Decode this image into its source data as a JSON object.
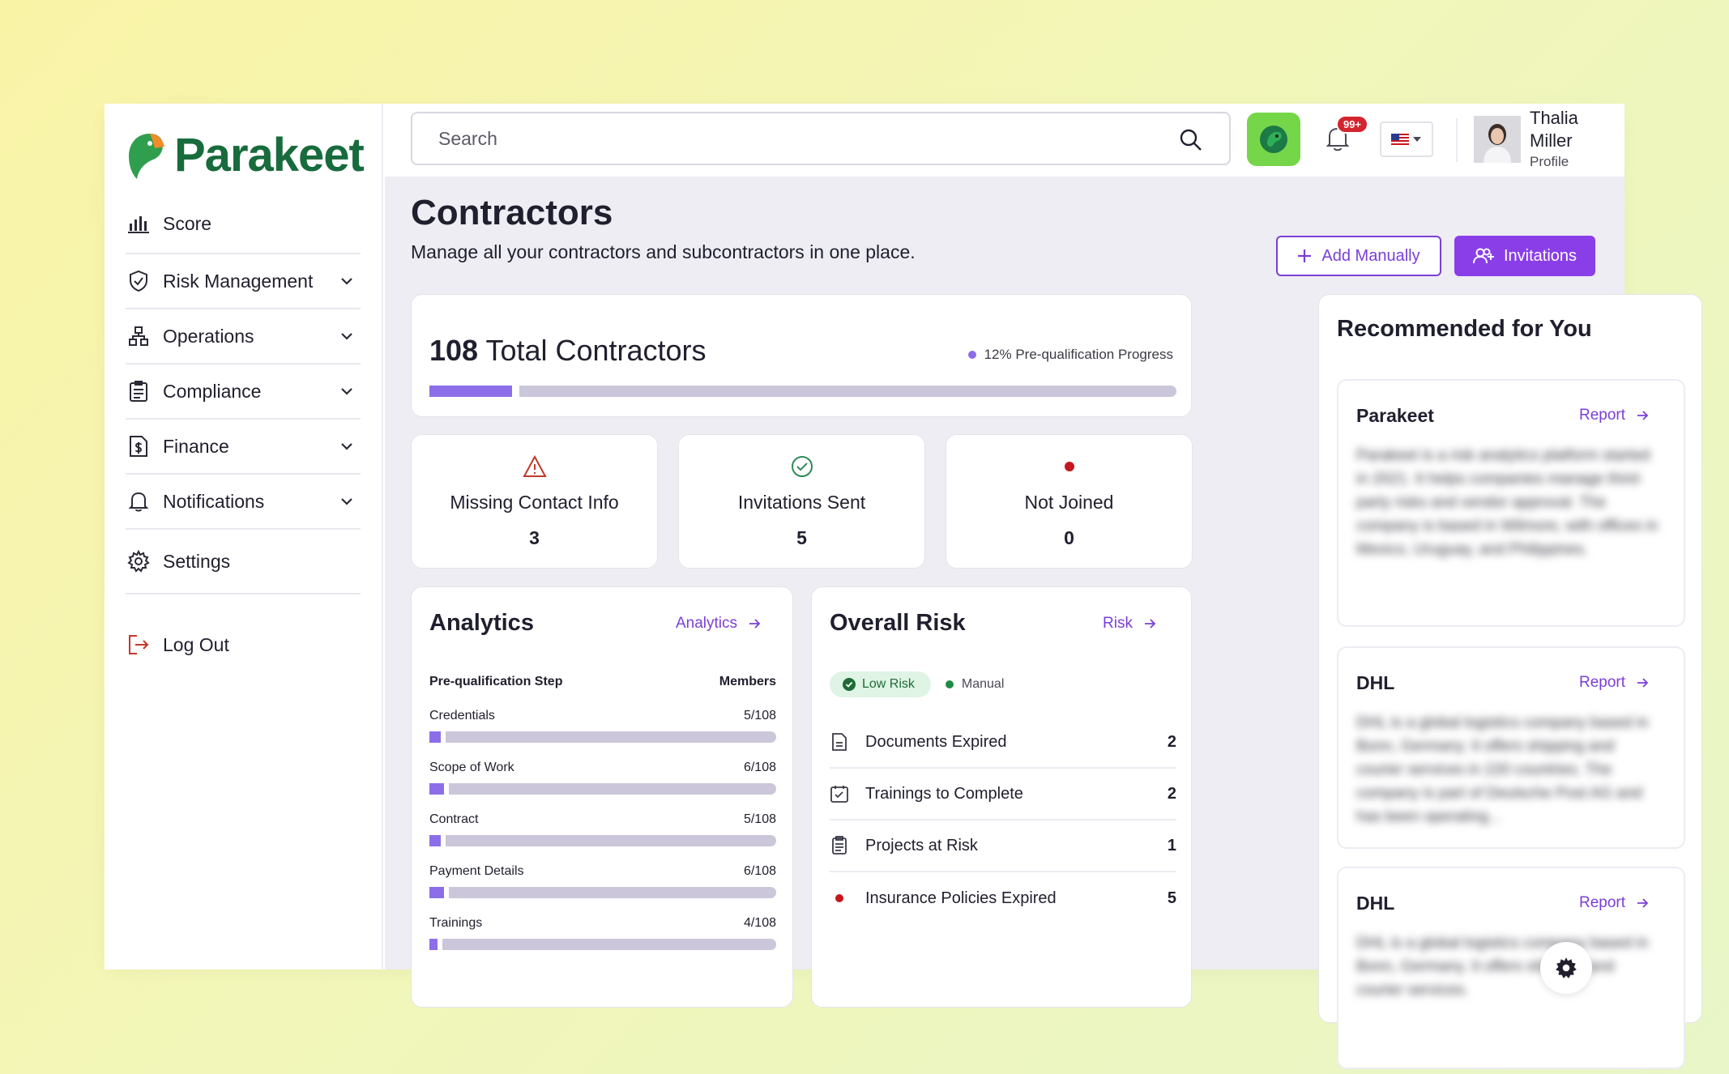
{
  "brand": {
    "name": "Parakeet",
    "green": "#186b3c",
    "purple": "#8a3ee8"
  },
  "sidebar": {
    "items": [
      {
        "label": "Score",
        "icon": "bar-chart-icon"
      },
      {
        "label": "Risk Management",
        "icon": "shield-check-icon"
      },
      {
        "label": "Operations",
        "icon": "org-tree-icon"
      },
      {
        "label": "Compliance",
        "icon": "clipboard-icon"
      },
      {
        "label": "Finance",
        "icon": "dollar-file-icon"
      },
      {
        "label": "Notifications",
        "icon": "bell-icon"
      },
      {
        "label": "Settings",
        "icon": "gear-icon"
      }
    ],
    "logout": "Log Out"
  },
  "header": {
    "search_placeholder": "Search",
    "notification_badge": "99+",
    "user": {
      "name": "Thalia Miller",
      "subtitle": "Profile"
    }
  },
  "page": {
    "title": "Contractors",
    "subtitle": "Manage all your contractors and subcontractors in one place.",
    "add_manually": "Add Manually",
    "invitations": "Invitations"
  },
  "summary": {
    "total": "108",
    "total_label": "Total Contractors",
    "progress_label": "12% Pre-qualification Progress",
    "progress_value": 0.12
  },
  "stats": [
    {
      "label": "Missing Contact Info",
      "value": "3",
      "icon": "warning-triangle-icon",
      "color": "#c0392b"
    },
    {
      "label": "Invitations Sent",
      "value": "5",
      "icon": "check-circle-icon",
      "color": "#2e8b57"
    },
    {
      "label": "Not Joined",
      "value": "0",
      "icon": "red-dot-icon",
      "color": "#c8161d"
    }
  ],
  "analytics": {
    "title": "Analytics",
    "link": "Analytics",
    "col_step": "Pre-qualification Step",
    "col_members": "Members",
    "rows": [
      {
        "label": "Credentials",
        "value": "5/108",
        "fraction": 0.046
      },
      {
        "label": "Scope of Work",
        "value": "6/108",
        "fraction": 0.056
      },
      {
        "label": "Contract",
        "value": "5/108",
        "fraction": 0.046
      },
      {
        "label": "Payment Details",
        "value": "6/108",
        "fraction": 0.056
      },
      {
        "label": "Trainings",
        "value": "4/108",
        "fraction": 0.037
      }
    ]
  },
  "risk": {
    "title": "Overall Risk",
    "link": "Risk",
    "level": "Low Risk",
    "mode": "Manual",
    "rows": [
      {
        "label": "Documents Expired",
        "value": "2",
        "icon": "document-icon"
      },
      {
        "label": "Trainings to Complete",
        "value": "2",
        "icon": "calendar-check-icon"
      },
      {
        "label": "Projects at Risk",
        "value": "1",
        "icon": "clipboard-list-icon"
      },
      {
        "label": "Insurance Policies Expired",
        "value": "5",
        "icon": "red-dot-icon"
      }
    ]
  },
  "recommended": {
    "title": "Recommended for You",
    "items": [
      {
        "name": "Parakeet",
        "link": "Report",
        "desc": "Parakeet is a risk analytics platform started in 2021. It helps companies manage third-party risks and vendor approval. The company is based in Wilmore, with offices in Mexico, Uruguay, and Philippines."
      },
      {
        "name": "DHL",
        "link": "Report",
        "desc": "DHL is a global logistics company based in Bonn, Germany. It offers shipping and courier services in 220 countries. The company is part of Deutsche Post AG and has been operating..."
      },
      {
        "name": "DHL",
        "link": "Report",
        "desc": "DHL is a global logistics company based in Bonn, Germany. It offers shipping and courier services."
      }
    ]
  }
}
